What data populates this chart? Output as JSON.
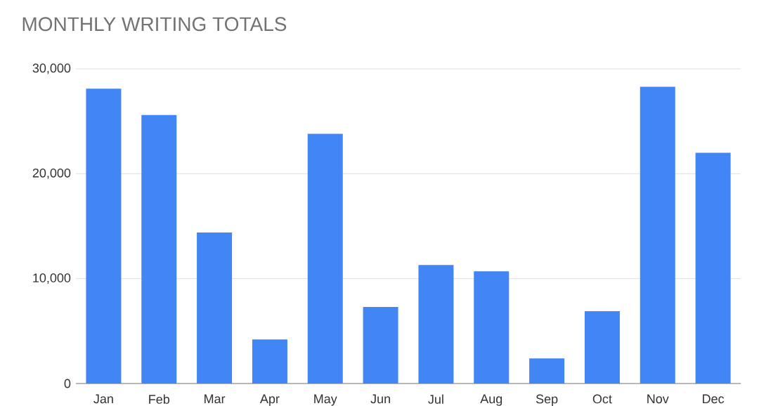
{
  "chart_data": {
    "type": "bar",
    "title": "MONTHLY WRITING TOTALS",
    "categories": [
      "Jan",
      "Feb",
      "Mar",
      "Apr",
      "May",
      "Jun",
      "Jul",
      "Aug",
      "Sep",
      "Oct",
      "Nov",
      "Dec"
    ],
    "values": [
      28100,
      25600,
      14400,
      4200,
      23800,
      7300,
      11300,
      10700,
      2400,
      6900,
      28300,
      22000
    ],
    "color": "#4285f4",
    "ylim": [
      0,
      30000
    ],
    "yticks": [
      {
        "value": 0,
        "label": "0"
      },
      {
        "value": 10000,
        "label": "10,000"
      },
      {
        "value": 20000,
        "label": "20,000"
      },
      {
        "value": 30000,
        "label": "30,000"
      }
    ],
    "grid": "y"
  }
}
